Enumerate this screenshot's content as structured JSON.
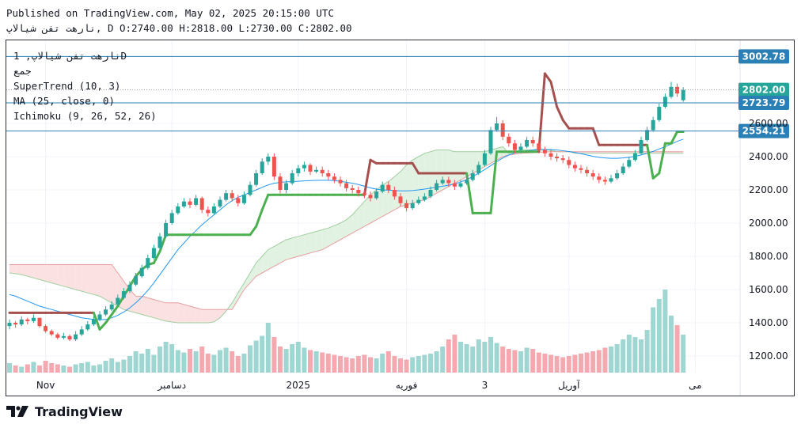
{
  "header": {
    "published": "Published on TradingView.com, May 02, 2025 20:15:00 UTC",
    "ohlc_line": "نارهت تفن شیالاپ, D O:2740.00 H:2818.00 L:2730.00 C:2802.00"
  },
  "legend": {
    "symbol": "نارهت تفن شیالاپ, 1D",
    "symbol_sub": "جمع",
    "supertrend": "SuperTrend (10, 3)",
    "ma": "MA (25, close, 0)",
    "ichimoku": "Ichimoku (9, 26, 52, 26)"
  },
  "brand": {
    "name": "TradingView"
  },
  "colors": {
    "up": "#26a69a",
    "down": "#ef5350",
    "up_vol": "#9fd6d1",
    "down_vol": "#f4a9b0",
    "supertrend_up": "#4caf50",
    "supertrend_down": "#a4504e",
    "ma": "#2196f3",
    "hline": "#2a7fb5",
    "cloud_green": "#e2f2e2",
    "cloud_red": "#fbe1e1",
    "span_a": "#9fcf9f",
    "span_b": "#e79f9f"
  },
  "chart_data": {
    "type": "candlestick",
    "title": "نارهت تفن شیالاپ, 1D",
    "ylim": [
      1100,
      3100
    ],
    "y_ticks": [
      "1200.00",
      "1400.00",
      "1600.00",
      "1800.00",
      "2000.00",
      "2200.00",
      "2400.00",
      "2600.00"
    ],
    "x_labels": [
      {
        "label": "Nov",
        "i": 6
      },
      {
        "label": "دسامبر",
        "i": 27
      },
      {
        "label": "2025",
        "i": 48
      },
      {
        "label": "فوریه",
        "i": 66
      },
      {
        "label": "3",
        "i": 79
      },
      {
        "label": "آوریل",
        "i": 93
      },
      {
        "label": "می",
        "i": 114
      }
    ],
    "price_levels": [
      {
        "label": "3002.78",
        "value": 3002.78,
        "kind": "line"
      },
      {
        "label": "2802.00",
        "value": 2802,
        "kind": "last"
      },
      {
        "label": "2723.79",
        "value": 2723.79,
        "kind": "line"
      },
      {
        "label": "2554.21",
        "value": 2554.21,
        "kind": "line"
      }
    ],
    "last_close": 2802,
    "closes": [
      1400,
      1390,
      1420,
      1410,
      1430,
      1380,
      1350,
      1330,
      1310,
      1320,
      1300,
      1330,
      1360,
      1390,
      1420,
      1450,
      1480,
      1510,
      1550,
      1590,
      1630,
      1680,
      1730,
      1790,
      1850,
      1920,
      2000,
      2060,
      2100,
      2130,
      2110,
      2150,
      2080,
      2060,
      2100,
      2140,
      2180,
      2150,
      2120,
      2170,
      2230,
      2300,
      2370,
      2400,
      2280,
      2200,
      2240,
      2300,
      2330,
      2350,
      2310,
      2320,
      2300,
      2280,
      2260,
      2240,
      2210,
      2200,
      2180,
      2170,
      2150,
      2190,
      2230,
      2200,
      2160,
      2120,
      2090,
      2120,
      2140,
      2160,
      2200,
      2240,
      2260,
      2240,
      2220,
      2240,
      2260,
      2300,
      2350,
      2420,
      2560,
      2600,
      2520,
      2480,
      2440,
      2460,
      2500,
      2480,
      2440,
      2420,
      2400,
      2390,
      2380,
      2350,
      2330,
      2320,
      2300,
      2280,
      2260,
      2250,
      2270,
      2300,
      2340,
      2380,
      2420,
      2500,
      2560,
      2620,
      2700,
      2760,
      2820,
      2780,
      2802
    ],
    "opens": [
      1380,
      1400,
      1390,
      1420,
      1410,
      1430,
      1380,
      1350,
      1330,
      1310,
      1320,
      1300,
      1330,
      1360,
      1390,
      1420,
      1450,
      1480,
      1510,
      1550,
      1590,
      1630,
      1680,
      1730,
      1790,
      1850,
      1920,
      2000,
      2060,
      2100,
      2130,
      2110,
      2150,
      2080,
      2060,
      2100,
      2140,
      2180,
      2150,
      2120,
      2170,
      2230,
      2300,
      2370,
      2400,
      2280,
      2200,
      2240,
      2300,
      2330,
      2350,
      2310,
      2320,
      2300,
      2280,
      2260,
      2240,
      2210,
      2200,
      2180,
      2170,
      2150,
      2190,
      2230,
      2200,
      2160,
      2120,
      2090,
      2120,
      2140,
      2160,
      2200,
      2240,
      2260,
      2240,
      2220,
      2240,
      2260,
      2300,
      2350,
      2420,
      2560,
      2600,
      2520,
      2480,
      2440,
      2460,
      2500,
      2480,
      2440,
      2420,
      2400,
      2390,
      2380,
      2350,
      2330,
      2320,
      2300,
      2280,
      2260,
      2250,
      2270,
      2300,
      2340,
      2380,
      2420,
      2500,
      2560,
      2620,
      2700,
      2760,
      2820,
      2740
    ],
    "highs": [
      1420,
      1410,
      1440,
      1430,
      1450,
      1430,
      1390,
      1360,
      1340,
      1340,
      1330,
      1350,
      1380,
      1410,
      1440,
      1470,
      1500,
      1530,
      1570,
      1610,
      1650,
      1700,
      1750,
      1810,
      1870,
      1940,
      2020,
      2080,
      2120,
      2150,
      2150,
      2170,
      2160,
      2100,
      2120,
      2160,
      2200,
      2200,
      2170,
      2190,
      2250,
      2320,
      2390,
      2420,
      2420,
      2300,
      2260,
      2320,
      2350,
      2370,
      2360,
      2340,
      2340,
      2320,
      2300,
      2280,
      2260,
      2230,
      2220,
      2200,
      2190,
      2210,
      2250,
      2250,
      2220,
      2180,
      2140,
      2140,
      2160,
      2180,
      2220,
      2260,
      2280,
      2280,
      2260,
      2260,
      2280,
      2320,
      2370,
      2440,
      2580,
      2640,
      2620,
      2540,
      2500,
      2480,
      2520,
      2520,
      2500,
      2460,
      2440,
      2420,
      2410,
      2400,
      2370,
      2350,
      2340,
      2320,
      2300,
      2280,
      2290,
      2320,
      2360,
      2400,
      2440,
      2520,
      2580,
      2640,
      2720,
      2780,
      2850,
      2840,
      2818
    ],
    "lows": [
      1360,
      1370,
      1380,
      1390,
      1400,
      1370,
      1340,
      1320,
      1300,
      1300,
      1290,
      1290,
      1320,
      1350,
      1380,
      1410,
      1440,
      1470,
      1500,
      1540,
      1580,
      1620,
      1670,
      1720,
      1780,
      1840,
      1910,
      1990,
      2050,
      2090,
      2090,
      2100,
      2060,
      2040,
      2050,
      2090,
      2130,
      2130,
      2100,
      2110,
      2160,
      2220,
      2290,
      2350,
      2260,
      2180,
      2180,
      2230,
      2280,
      2310,
      2290,
      2300,
      2280,
      2260,
      2240,
      2220,
      2190,
      2180,
      2160,
      2150,
      2130,
      2140,
      2180,
      2180,
      2140,
      2100,
      2070,
      2080,
      2110,
      2130,
      2150,
      2190,
      2230,
      2220,
      2200,
      2210,
      2230,
      2250,
      2290,
      2340,
      2410,
      2550,
      2500,
      2460,
      2420,
      2420,
      2450,
      2460,
      2420,
      2400,
      2380,
      2370,
      2360,
      2330,
      2310,
      2300,
      2280,
      2260,
      2240,
      2230,
      2240,
      2260,
      2290,
      2330,
      2370,
      2410,
      2490,
      2550,
      2610,
      2690,
      2750,
      2760,
      2730
    ],
    "volumes": [
      8,
      6,
      5,
      7,
      9,
      6,
      10,
      8,
      7,
      6,
      5,
      7,
      8,
      9,
      6,
      7,
      10,
      12,
      9,
      11,
      14,
      18,
      16,
      20,
      15,
      22,
      26,
      24,
      19,
      17,
      20,
      18,
      22,
      16,
      15,
      19,
      21,
      18,
      14,
      16,
      23,
      27,
      31,
      42,
      30,
      22,
      20,
      24,
      26,
      21,
      19,
      18,
      17,
      16,
      15,
      14,
      13,
      12,
      14,
      15,
      13,
      12,
      16,
      18,
      14,
      12,
      11,
      13,
      14,
      15,
      16,
      18,
      22,
      28,
      32,
      26,
      24,
      22,
      28,
      26,
      30,
      25,
      22,
      20,
      19,
      18,
      21,
      20,
      17,
      16,
      15,
      14,
      13,
      14,
      15,
      16,
      17,
      18,
      19,
      21,
      22,
      24,
      28,
      32,
      30,
      28,
      36,
      55,
      62,
      70,
      48,
      40,
      32
    ],
    "supertrend": [
      1460,
      1460,
      1460,
      1460,
      1460,
      1460,
      1460,
      1460,
      1460,
      1460,
      1460,
      1460,
      1460,
      1460,
      1460,
      1360,
      1400,
      1450,
      1500,
      1560,
      1620,
      1680,
      1720,
      1750,
      1760,
      1830,
      1930,
      1930,
      1930,
      1930,
      1930,
      1930,
      1930,
      1930,
      1930,
      1930,
      1930,
      1930,
      1930,
      1930,
      1930,
      1980,
      2080,
      2170,
      2170,
      2170,
      2170,
      2170,
      2170,
      2170,
      2170,
      2170,
      2170,
      2170,
      2170,
      2170,
      2170,
      2170,
      2170,
      2170,
      2380,
      2360,
      2360,
      2360,
      2360,
      2360,
      2360,
      2360,
      2300,
      2300,
      2300,
      2300,
      2300,
      2300,
      2300,
      2300,
      2300,
      2060,
      2060,
      2060,
      2060,
      2430,
      2430,
      2430,
      2430,
      2430,
      2430,
      2430,
      2430,
      2900,
      2850,
      2700,
      2620,
      2570,
      2570,
      2570,
      2570,
      2570,
      2470,
      2470,
      2470,
      2470,
      2470,
      2470,
      2470,
      2470,
      2470,
      2270,
      2300,
      2480,
      2480,
      2550,
      2550
    ],
    "supertrend_dir": [
      "d",
      "d",
      "d",
      "d",
      "d",
      "d",
      "d",
      "d",
      "d",
      "d",
      "d",
      "d",
      "d",
      "d",
      "d",
      "u",
      "u",
      "u",
      "u",
      "u",
      "u",
      "u",
      "u",
      "u",
      "u",
      "u",
      "u",
      "u",
      "u",
      "u",
      "u",
      "u",
      "u",
      "u",
      "u",
      "u",
      "u",
      "u",
      "u",
      "u",
      "u",
      "u",
      "u",
      "u",
      "u",
      "u",
      "u",
      "u",
      "u",
      "u",
      "u",
      "u",
      "u",
      "u",
      "u",
      "u",
      "u",
      "u",
      "u",
      "u",
      "d",
      "d",
      "d",
      "d",
      "d",
      "d",
      "d",
      "d",
      "d",
      "d",
      "d",
      "d",
      "d",
      "d",
      "d",
      "d",
      "d",
      "u",
      "u",
      "u",
      "u",
      "u",
      "u",
      "u",
      "u",
      "u",
      "u",
      "u",
      "u",
      "d",
      "d",
      "d",
      "d",
      "d",
      "d",
      "d",
      "d",
      "d",
      "d",
      "d",
      "d",
      "d",
      "d",
      "d",
      "d",
      "d",
      "d",
      "u",
      "u",
      "u",
      "u",
      "u",
      "u"
    ],
    "ma": [
      1570,
      1560,
      1545,
      1530,
      1515,
      1500,
      1490,
      1480,
      1470,
      1460,
      1450,
      1440,
      1430,
      1425,
      1420,
      1418,
      1420,
      1430,
      1445,
      1465,
      1490,
      1520,
      1555,
      1595,
      1640,
      1690,
      1740,
      1790,
      1840,
      1880,
      1920,
      1955,
      1990,
      2020,
      2050,
      2080,
      2110,
      2135,
      2155,
      2170,
      2185,
      2200,
      2215,
      2230,
      2240,
      2245,
      2248,
      2250,
      2252,
      2254,
      2256,
      2257,
      2258,
      2258,
      2256,
      2252,
      2246,
      2240,
      2232,
      2222,
      2212,
      2204,
      2200,
      2198,
      2196,
      2194,
      2194,
      2196,
      2200,
      2205,
      2210,
      2216,
      2222,
      2228,
      2236,
      2248,
      2262,
      2280,
      2300,
      2322,
      2346,
      2370,
      2392,
      2410,
      2422,
      2430,
      2436,
      2440,
      2442,
      2443,
      2443,
      2440,
      2436,
      2431,
      2425,
      2418,
      2410,
      2402,
      2396,
      2392,
      2390,
      2390,
      2392,
      2396,
      2402,
      2410,
      2420,
      2432,
      2446,
      2460,
      2476,
      2492,
      2505
    ],
    "span_a_note": "Ichimoku Leading Span A and B shifted forward 26 bars",
    "span_a": [
      1700,
      1695,
      1690,
      1680,
      1670,
      1660,
      1650,
      1640,
      1630,
      1620,
      1610,
      1600,
      1590,
      1580,
      1570,
      1560,
      1540,
      1520,
      1500,
      1480,
      1470,
      1460,
      1450,
      1440,
      1430,
      1420,
      1410,
      1405,
      1400,
      1400,
      1400,
      1400,
      1400,
      1400,
      1405,
      1430,
      1470,
      1520,
      1580,
      1640,
      1700,
      1760,
      1800,
      1840,
      1860,
      1880,
      1900,
      1910,
      1920,
      1930,
      1940,
      1950,
      1960,
      1970,
      1985,
      2000,
      2020,
      2050,
      2090,
      2130,
      2170,
      2200,
      2230,
      2250,
      2280,
      2310,
      2350,
      2380,
      2400,
      2420,
      2430,
      2440,
      2440,
      2440,
      2430,
      2430,
      2430,
      2430,
      2430,
      2430,
      2440,
      2450,
      2460,
      2420,
      2430,
      2440,
      2440,
      2440,
      2450,
      2440,
      2440,
      2430,
      2430,
      2430,
      2420,
      2420,
      2420,
      2420,
      2420,
      2420,
      2420,
      2420,
      2420,
      2420,
      2420,
      2420,
      2420,
      2420,
      2420,
      2420,
      2420,
      2420,
      2420
    ],
    "span_b": [
      1750,
      1750,
      1750,
      1750,
      1750,
      1750,
      1750,
      1750,
      1750,
      1750,
      1750,
      1750,
      1750,
      1750,
      1750,
      1750,
      1750,
      1750,
      1700,
      1650,
      1600,
      1560,
      1560,
      1550,
      1540,
      1530,
      1520,
      1520,
      1520,
      1510,
      1500,
      1490,
      1480,
      1480,
      1480,
      1480,
      1480,
      1480,
      1540,
      1600,
      1640,
      1680,
      1700,
      1720,
      1740,
      1760,
      1780,
      1790,
      1800,
      1810,
      1820,
      1830,
      1840,
      1860,
      1880,
      1900,
      1920,
      1940,
      1960,
      1980,
      2000,
      2020,
      2040,
      2060,
      2080,
      2100,
      2110,
      2120,
      2130,
      2140,
      2160,
      2180,
      2200,
      2220,
      2240,
      2260,
      2280,
      2300,
      2320,
      2340,
      2360,
      2380,
      2400,
      2410,
      2415,
      2420,
      2422,
      2424,
      2426,
      2428,
      2430,
      2430,
      2430,
      2430,
      2430,
      2430,
      2430,
      2430,
      2430,
      2430,
      2430,
      2430,
      2430,
      2430,
      2430,
      2430,
      2430,
      2430,
      2430,
      2430,
      2430,
      2430,
      2430
    ]
  }
}
